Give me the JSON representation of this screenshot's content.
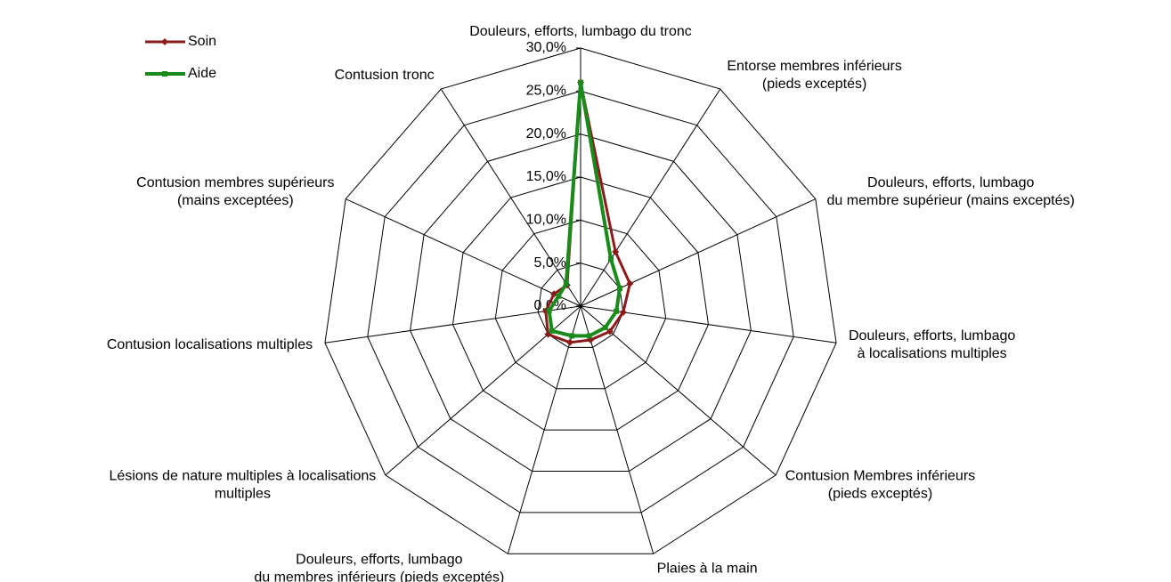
{
  "chart_data": {
    "type": "radar",
    "categories": [
      "Douleurs, efforts, lumbago du tronc",
      "Entorse membres inférieurs\n(pieds exceptés)",
      "Douleurs, efforts, lumbago\ndu membre supérieur (mains exceptés)",
      "Douleurs, efforts, lumbago\nà localisations multiples",
      "Contusion Membres inférieurs\n(pieds exceptés)",
      "Plaies à la main",
      "Douleurs, efforts, lumbago\ndu membres inférieurs (pieds exceptés)",
      "Lésions de nature multiples à localisations\nmultiples",
      "Contusion localisations multiples",
      "Contusion membres supérieurs\n(mains exceptées)",
      "Contusion tronc"
    ],
    "series": [
      {
        "name": "Soin",
        "color": "#8b1a1a",
        "values": [
          26,
          7.5,
          6.3,
          5,
          4.5,
          4.1,
          4.4,
          5,
          4.1,
          3.4,
          2.9
        ]
      },
      {
        "name": "Aide",
        "color": "#1a8a1a",
        "values": [
          26,
          6.5,
          5,
          4.2,
          3.8,
          3.6,
          3.6,
          4.4,
          3.7,
          2.8,
          3.1
        ]
      }
    ],
    "ylim": [
      0,
      30
    ],
    "yticks": [
      {
        "value": 0,
        "label": "0,0%"
      },
      {
        "value": 5,
        "label": "5,0%"
      },
      {
        "value": 10,
        "label": "10,0%"
      },
      {
        "value": 15,
        "label": "15,0%"
      },
      {
        "value": 20,
        "label": "20,0%"
      },
      {
        "value": 25,
        "label": "25,0%"
      },
      {
        "value": 30,
        "label": "30,0%"
      }
    ],
    "legend": "top-left",
    "grid": true
  }
}
